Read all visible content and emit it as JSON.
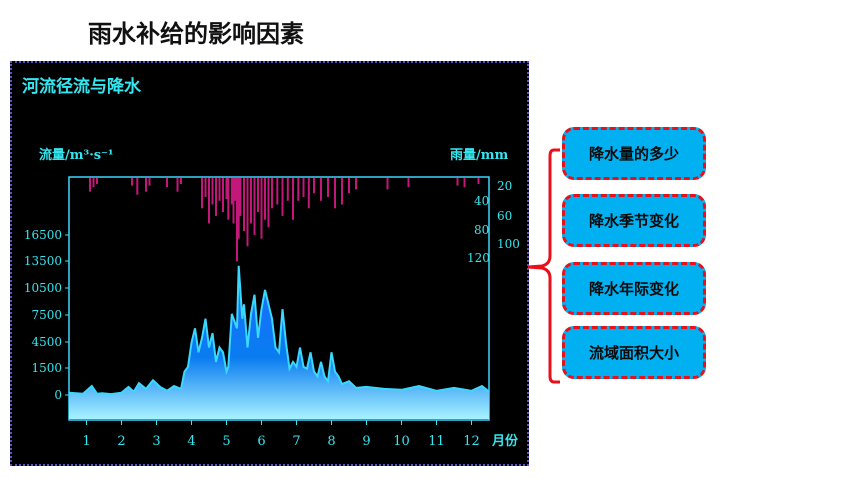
{
  "slide": {
    "title": "雨水补给的影响因素"
  },
  "factors": [
    "降水量的多少",
    "降水季节变化",
    "降水年际变化",
    "流域面积大小"
  ],
  "colors": {
    "factor_fill": "#00b0f0",
    "factor_border": "#e8101a",
    "frame_border": "#5b4fd6",
    "flow_line": "#3ad8ff",
    "rain_bars": "#c2187a",
    "axis_text": "#34e6ef",
    "plot_border": "#3ad8ff"
  },
  "chart_data": {
    "type": "area",
    "title": "河流径流与降水",
    "ylabel": "流量/m³·s⁻¹",
    "y2label": "雨量/mm",
    "xlabel": "月份",
    "x_ticks": [
      "1",
      "2",
      "3",
      "4",
      "5",
      "6",
      "7",
      "8",
      "9",
      "10",
      "11",
      "12"
    ],
    "y_ticks": [
      "16500",
      "13500",
      "10500",
      "7500",
      "4500",
      "1500",
      "0"
    ],
    "y2_ticks": [
      "20",
      "40",
      "60",
      "80",
      "100",
      "120"
    ],
    "xlim": [
      0.5,
      12.5
    ],
    "ylim": [
      -1500,
      16500
    ],
    "y2lim": [
      0,
      180
    ],
    "series": [
      {
        "kind": "area",
        "x": [
          0.5,
          0.9,
          1.15,
          1.3,
          1.45,
          1.7,
          2.0,
          2.2,
          2.35,
          2.5,
          2.7,
          2.9,
          3.1,
          3.3,
          3.5,
          3.7,
          3.8,
          3.9,
          4.0,
          4.1,
          4.2,
          4.3,
          4.4,
          4.5,
          4.6,
          4.7,
          4.8,
          4.9,
          5.0,
          5.05,
          5.15,
          5.3,
          5.35,
          5.45,
          5.5,
          5.6,
          5.7,
          5.8,
          5.9,
          6.0,
          6.1,
          6.2,
          6.3,
          6.4,
          6.5,
          6.6,
          6.7,
          6.8,
          6.9,
          7.0,
          7.1,
          7.2,
          7.3,
          7.4,
          7.5,
          7.6,
          7.7,
          7.8,
          7.9,
          8.0,
          8.1,
          8.2,
          8.3,
          8.5,
          8.7,
          9.0,
          9.5,
          10.0,
          10.5,
          11.0,
          11.5,
          12.0,
          12.3,
          12.5
        ],
        "y": [
          300,
          200,
          1000,
          200,
          250,
          150,
          300,
          900,
          400,
          1300,
          700,
          1600,
          900,
          500,
          1000,
          700,
          2500,
          3000,
          5500,
          7000,
          4500,
          6000,
          8000,
          5000,
          6500,
          3500,
          5000,
          4500,
          2500,
          3000,
          8500,
          7000,
          13500,
          8000,
          9500,
          5000,
          8500,
          10500,
          6000,
          9000,
          11000,
          9500,
          8000,
          5000,
          4500,
          9000,
          5500,
          2800,
          3500,
          3000,
          5000,
          3000,
          2800,
          4500,
          2500,
          2000,
          3500,
          2000,
          1500,
          4500,
          2500,
          2000,
          1200,
          1500,
          800,
          900,
          700,
          600,
          1000,
          500,
          800,
          500,
          1000,
          400
        ]
      },
      {
        "kind": "bars",
        "x": [
          1.1,
          1.2,
          1.3,
          2.3,
          2.45,
          2.7,
          2.8,
          3.3,
          3.6,
          3.7,
          4.3,
          4.4,
          4.5,
          4.6,
          4.7,
          4.8,
          4.9,
          5.0,
          5.05,
          5.15,
          5.2,
          5.25,
          5.3,
          5.35,
          5.4,
          5.5,
          5.6,
          5.7,
          5.8,
          5.9,
          6.0,
          6.1,
          6.2,
          6.3,
          6.45,
          6.6,
          6.75,
          6.9,
          7.05,
          7.2,
          7.35,
          7.5,
          7.7,
          7.9,
          8.1,
          8.3,
          8.5,
          8.7,
          9.6,
          10.2,
          11.6,
          11.8,
          12.2
        ],
        "y": [
          18,
          12,
          8,
          10,
          22,
          18,
          10,
          12,
          18,
          8,
          40,
          25,
          60,
          35,
          50,
          30,
          45,
          28,
          55,
          35,
          60,
          30,
          110,
          80,
          50,
          70,
          90,
          60,
          75,
          45,
          80,
          55,
          65,
          40,
          35,
          50,
          30,
          55,
          30,
          25,
          40,
          20,
          30,
          25,
          40,
          35,
          20,
          15,
          15,
          12,
          10,
          12,
          8
        ]
      }
    ]
  }
}
